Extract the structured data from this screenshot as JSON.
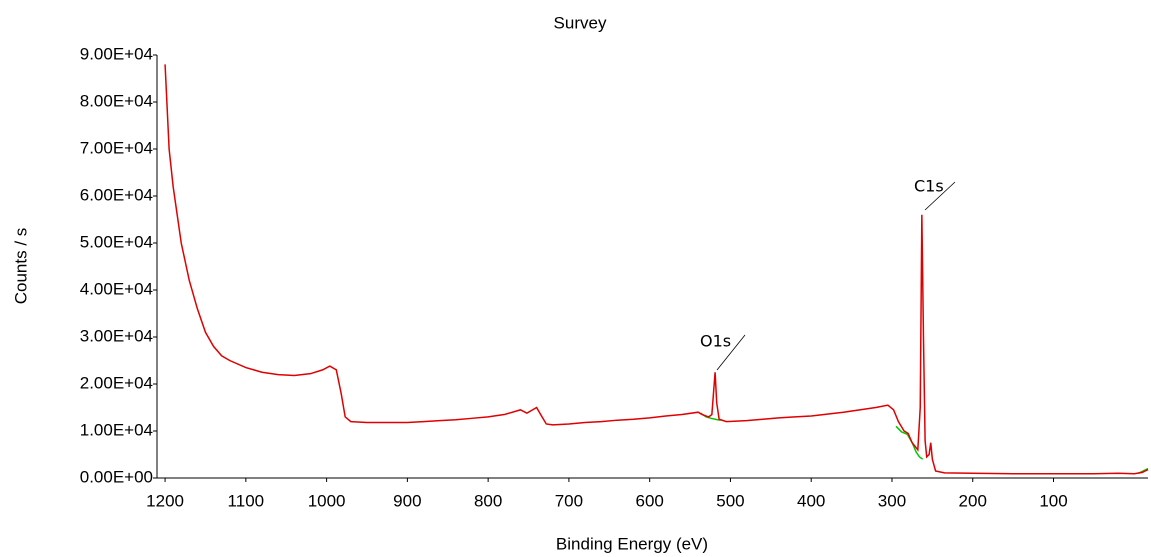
{
  "chart_data": {
    "type": "line",
    "title": "Survey",
    "x_label": "Binding Energy (eV)",
    "y_label": "Counts / s",
    "xlim": [
      1210,
      -17
    ],
    "ylim": [
      0,
      90000
    ],
    "xticks": [
      1200,
      1100,
      1000,
      900,
      800,
      700,
      600,
      500,
      400,
      300,
      200,
      100
    ],
    "yticks": [
      {
        "value": 0,
        "label": "0.00E+00"
      },
      {
        "value": 10000,
        "label": "1.00E+04"
      },
      {
        "value": 20000,
        "label": "2.00E+04"
      },
      {
        "value": 30000,
        "label": "3.00E+04"
      },
      {
        "value": 40000,
        "label": "4.00E+04"
      },
      {
        "value": 50000,
        "label": "5.00E+04"
      },
      {
        "value": 60000,
        "label": "6.00E+04"
      },
      {
        "value": 70000,
        "label": "7.00E+04"
      },
      {
        "value": 80000,
        "label": "8.00E+04"
      },
      {
        "value": 90000,
        "label": "9.00E+04"
      }
    ],
    "annotations": [
      "O1s",
      "C1s"
    ],
    "series": [
      {
        "color": "#e00000",
        "x": [
          1200,
          1195,
          1190,
          1180,
          1170,
          1160,
          1150,
          1140,
          1130,
          1120,
          1100,
          1080,
          1060,
          1040,
          1020,
          1005,
          996,
          988,
          982,
          977,
          970,
          950,
          920,
          900,
          880,
          860,
          840,
          820,
          800,
          780,
          760,
          752,
          740,
          735,
          728,
          720,
          700,
          680,
          660,
          640,
          620,
          600,
          580,
          560,
          540,
          535,
          527,
          523,
          521,
          519,
          517,
          514,
          505,
          480,
          460,
          440,
          420,
          400,
          380,
          360,
          340,
          320,
          305,
          298,
          292,
          285,
          280,
          275,
          268,
          265,
          263,
          261,
          259,
          257,
          254,
          252,
          250,
          246,
          235,
          200,
          150,
          100,
          50,
          20,
          0,
          -10,
          -17
        ],
        "values": [
          88000,
          70000,
          62000,
          50000,
          42000,
          36000,
          31000,
          28000,
          26000,
          25000,
          23500,
          22500,
          22000,
          21800,
          22200,
          23000,
          23800,
          23000,
          18000,
          13000,
          12000,
          11800,
          11800,
          11800,
          12000,
          12200,
          12400,
          12700,
          13000,
          13500,
          14500,
          13800,
          15000,
          13500,
          11500,
          11300,
          11500,
          11800,
          12000,
          12300,
          12500,
          12800,
          13200,
          13500,
          14000,
          13500,
          13000,
          13500,
          18000,
          22500,
          16000,
          12500,
          12000,
          12200,
          12500,
          12800,
          13000,
          13200,
          13600,
          14000,
          14500,
          15000,
          15500,
          14500,
          12000,
          10000,
          9500,
          7500,
          6000,
          15000,
          56000,
          30000,
          8000,
          4500,
          5000,
          7500,
          4000,
          1500,
          1100,
          1000,
          900,
          900,
          900,
          1000,
          900,
          1200,
          1800
        ]
      },
      {
        "color": "#00c800",
        "x": [
          537,
          530,
          524,
          516,
          512,
          400,
          295,
          288,
          281,
          275,
          270,
          266,
          262,
          100,
          -5,
          -17
        ],
        "values": [
          13800,
          13000,
          12700,
          12400,
          12300,
          null,
          11000,
          9800,
          9300,
          7500,
          5500,
          4500,
          4000,
          null,
          1000,
          2000
        ]
      }
    ]
  }
}
